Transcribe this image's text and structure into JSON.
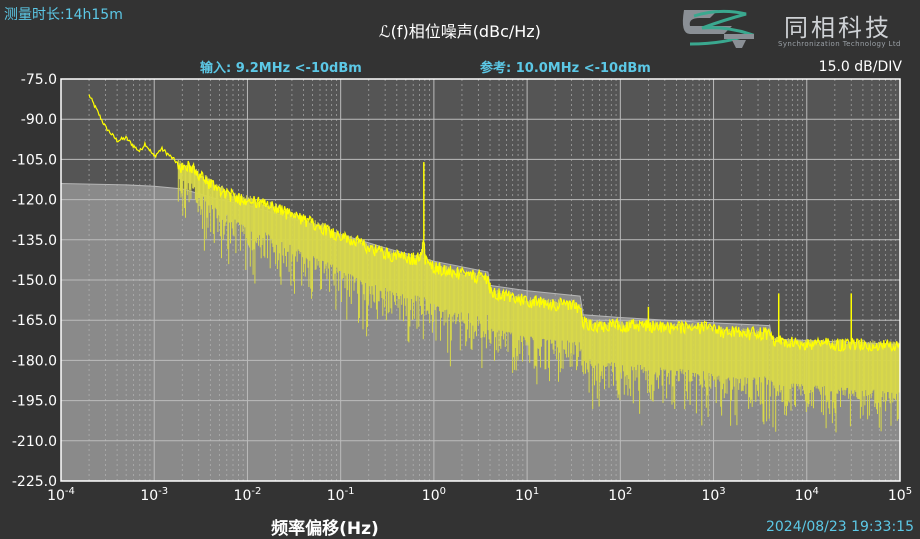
{
  "header": {
    "measure_time": "测量时长:14h15m",
    "title": "ℒ(f)相位噪声(dBc/Hz)",
    "input": "输入: 9.2MHz <-10dBm",
    "reference": "参考: 10.0MHz <-10dBm",
    "scale": "15.0 dB/DIV",
    "xlabel": "频率偏移(Hz)",
    "timestamp": "2024/08/23 19:33:15"
  },
  "logo": {
    "brand": "同相科技",
    "tagline": "Synchronization Technology Ltd"
  },
  "colors": {
    "background": "#333333",
    "plot": "#555555",
    "grid": "#bbbbbb",
    "trace": "#ffff00",
    "floor": "#8a8a8a",
    "accent": "#5cc8e6"
  },
  "chart_data": {
    "type": "line",
    "x_scale": "log",
    "xlim": [
      0.0001,
      100000
    ],
    "ylim": [
      -225,
      -75
    ],
    "xlabel": "频率偏移(Hz)",
    "ylabel": "ℒ(f)相位噪声(dBc/Hz)",
    "grid": true,
    "x_ticks": [
      {
        "value": 0.0001,
        "base": "10",
        "exp": "-4"
      },
      {
        "value": 0.001,
        "base": "10",
        "exp": "-3"
      },
      {
        "value": 0.01,
        "base": "10",
        "exp": "-2"
      },
      {
        "value": 0.1,
        "base": "10",
        "exp": "-1"
      },
      {
        "value": 1,
        "base": "10",
        "exp": "0"
      },
      {
        "value": 10,
        "base": "10",
        "exp": "1"
      },
      {
        "value": 100,
        "base": "10",
        "exp": "2"
      },
      {
        "value": 1000,
        "base": "10",
        "exp": "3"
      },
      {
        "value": 10000,
        "base": "10",
        "exp": "4"
      },
      {
        "value": 100000,
        "base": "10",
        "exp": "5"
      }
    ],
    "y_ticks": [
      {
        "value": -75,
        "label": "-75.0"
      },
      {
        "value": -90,
        "label": "-90.0"
      },
      {
        "value": -105,
        "label": "-105.0"
      },
      {
        "value": -120,
        "label": "-120.0"
      },
      {
        "value": -135,
        "label": "-135.0"
      },
      {
        "value": -150,
        "label": "-150.0"
      },
      {
        "value": -165,
        "label": "-165.0"
      },
      {
        "value": -180,
        "label": "-180.0"
      },
      {
        "value": -195,
        "label": "-195.0"
      },
      {
        "value": -210,
        "label": "-210.0"
      },
      {
        "value": -225,
        "label": "-225.0"
      }
    ],
    "series": [
      {
        "role": "phase-noise",
        "x": [
          0.0002,
          0.0003,
          0.0004,
          0.0005,
          0.0006,
          0.0007,
          0.0008,
          0.001,
          0.0012,
          0.0015,
          0.002,
          0.0025,
          0.003,
          0.004,
          0.005,
          0.007,
          0.01,
          0.015,
          0.02,
          0.03,
          0.05,
          0.07,
          0.1,
          0.15,
          0.2,
          0.3,
          0.5,
          0.7,
          0.78,
          0.8,
          0.9,
          1,
          1.5,
          2,
          3,
          3.8,
          4,
          6,
          10,
          20,
          37,
          40,
          60,
          100,
          200,
          400,
          800,
          1000,
          2000,
          4000,
          4200,
          10000,
          30000,
          100000
        ],
        "y": [
          -81,
          -93,
          -98,
          -97,
          -100,
          -102,
          -99,
          -104,
          -101,
          -104,
          -108,
          -108,
          -111,
          -114,
          -116,
          -119,
          -120,
          -122,
          -123,
          -126,
          -129,
          -131,
          -134,
          -136,
          -138,
          -140,
          -142,
          -142,
          -135,
          -143,
          -144,
          -145,
          -147,
          -148,
          -149,
          -149,
          -155,
          -156,
          -158,
          -159,
          -160,
          -166,
          -167,
          -167,
          -167,
          -168,
          -168,
          -169,
          -170,
          -170,
          -173,
          -174,
          -174,
          -175
        ],
        "low": [
          -81,
          -93,
          -98,
          -97,
          -100,
          -102,
          -99,
          -104,
          -101,
          -104,
          -113,
          -113,
          -117,
          -121,
          -124,
          -127,
          -130,
          -132,
          -134,
          -137,
          -141,
          -143,
          -146,
          -149,
          -151,
          -153,
          -155,
          -156,
          -156,
          -157,
          -158,
          -159,
          -161,
          -162,
          -163,
          -163,
          -168,
          -169,
          -171,
          -172,
          -173,
          -179,
          -180,
          -181,
          -182,
          -183,
          -184,
          -185,
          -186,
          -186,
          -188,
          -189,
          -190,
          -192
        ]
      },
      {
        "role": "noise-floor",
        "x": [
          0.0001,
          0.0005,
          0.001,
          0.002,
          0.005,
          0.01,
          0.03,
          0.1,
          0.3,
          1,
          3.8,
          4,
          10,
          37,
          40,
          100,
          1000,
          4000,
          4200,
          100000
        ],
        "y": [
          -114,
          -114.5,
          -115,
          -116,
          -120,
          -122,
          -127,
          -133,
          -138,
          -143,
          -147,
          -152,
          -154,
          -156,
          -163,
          -164,
          -166,
          -167,
          -172,
          -174
        ]
      }
    ],
    "spurs": [
      {
        "x": 0.78,
        "y": -106
      },
      {
        "x": 4,
        "y": -151
      },
      {
        "x": 37,
        "y": -160
      },
      {
        "x": 200,
        "y": -160
      },
      {
        "x": 5000,
        "y": -155
      },
      {
        "x": 30000,
        "y": -155
      }
    ]
  }
}
